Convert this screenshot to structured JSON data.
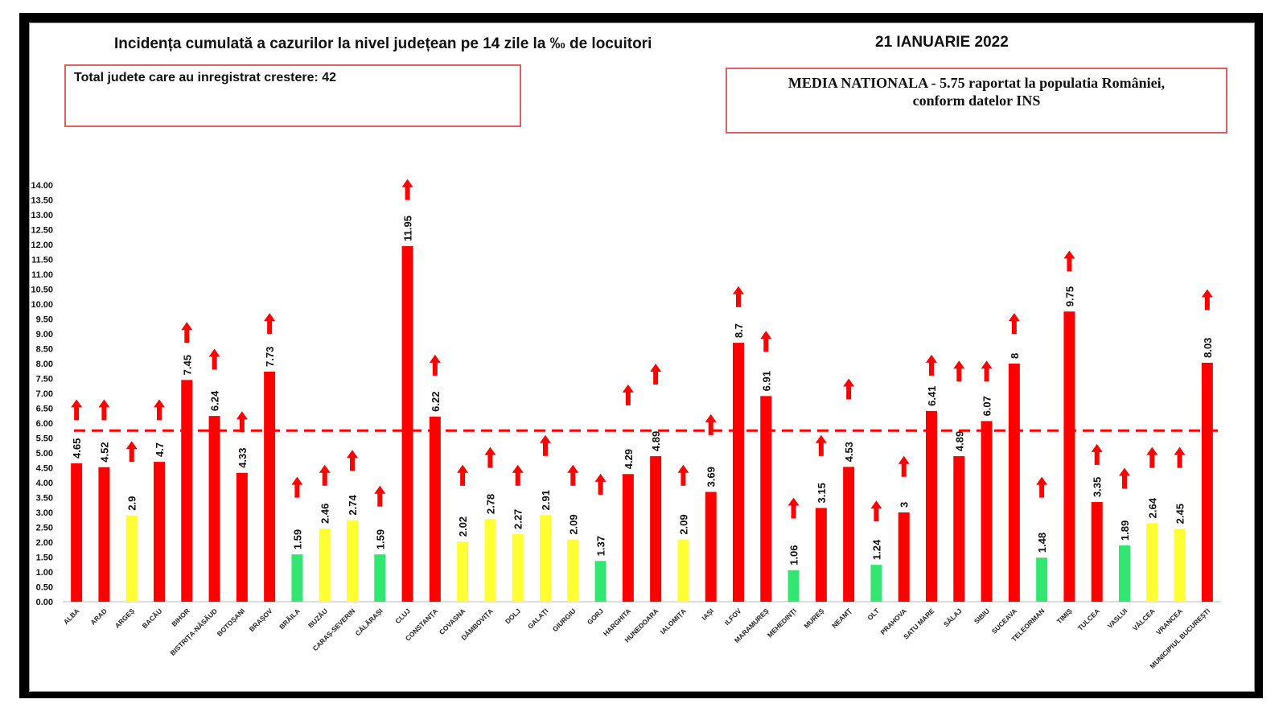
{
  "header": {
    "title": "Incidența cumulată a cazurilor la nivel județean pe 14 zile la ‰ de locuitori",
    "date": "21 IANUARIE 2022"
  },
  "summary": {
    "counties_increase": "Total judete care au inregistrat crestere: 42"
  },
  "national": {
    "line1": "MEDIA NATIONALA - 5.75  raportat la populatia României,",
    "line2": "conform datelor INS"
  },
  "colors": {
    "red": "#ff0000",
    "yellow": "#ffff33",
    "green": "#33e672",
    "arrow": "#ff0000",
    "average_line": "#ff0000"
  },
  "chart_data": {
    "type": "bar",
    "title": "Incidența cumulată a cazurilor la nivel județean pe 14 zile la ‰ de locuitori",
    "xlabel": "",
    "ylabel": "",
    "ylim": [
      0,
      14
    ],
    "yticks": [
      "0.00",
      "0.50",
      "1.00",
      "1.50",
      "2.00",
      "2.50",
      "3.00",
      "3.50",
      "4.00",
      "4.50",
      "5.00",
      "5.50",
      "6.00",
      "6.50",
      "7.00",
      "7.50",
      "8.00",
      "8.50",
      "9.00",
      "9.50",
      "10.00",
      "10.50",
      "11.00",
      "11.50",
      "12.00",
      "12.50",
      "13.00",
      "13.50",
      "14.00"
    ],
    "average": 5.75,
    "grid": false,
    "categories": [
      "ALBA",
      "ARAD",
      "ARGEȘ",
      "BACĂU",
      "BIHOR",
      "BISTRIȚA-NĂSĂUD",
      "BOTOȘANI",
      "BRAȘOV",
      "BRĂILA",
      "BUZĂU",
      "CARAȘ-SEVERIN",
      "CĂLĂRAȘI",
      "CLUJ",
      "CONSTANȚA",
      "COVASNA",
      "DÂMBOVIȚA",
      "DOLJ",
      "GALAȚI",
      "GIURGIU",
      "GORJ",
      "HARGHITA",
      "HUNEDOARA",
      "IALOMIȚA",
      "IAȘI",
      "ILFOV",
      "MARAMUREȘ",
      "MEHEDINȚI",
      "MUREȘ",
      "NEAMȚ",
      "OLT",
      "PRAHOVA",
      "SATU MARE",
      "SĂLAJ",
      "SIBIU",
      "SUCEAVA",
      "TELEORMAN",
      "TIMIȘ",
      "TULCEA",
      "VASLUI",
      "VÂLCEA",
      "VRANCEA",
      "MUNICIPIUL BUCUREȘTI"
    ],
    "values": [
      4.65,
      4.52,
      2.9,
      4.7,
      7.45,
      6.24,
      4.33,
      7.73,
      1.59,
      2.46,
      2.74,
      1.59,
      11.95,
      6.22,
      2.02,
      2.78,
      2.27,
      2.91,
      2.09,
      1.37,
      4.29,
      4.89,
      2.09,
      3.69,
      8.7,
      6.91,
      1.06,
      3.15,
      4.53,
      1.24,
      3,
      6.41,
      4.89,
      6.07,
      8,
      1.48,
      9.75,
      3.35,
      1.89,
      2.64,
      2.45,
      8.03
    ],
    "labels": [
      "4.65",
      "4.52",
      "2.9",
      "4.7",
      "7.45",
      "6.24",
      "4.33",
      "7.73",
      "1.59",
      "2.46",
      "2.74",
      "1.59",
      "11.95",
      "6.22",
      "2.02",
      "2.78",
      "2.27",
      "2.91",
      "2.09",
      "1.37",
      "4.29",
      "4.89",
      "2.09",
      "3.69",
      "8.7",
      "6.91",
      "1.06",
      "3.15",
      "4.53",
      "1.24",
      "3",
      "6.41",
      "4.89",
      "6.07",
      "8",
      "1.48",
      "9.75",
      "3.35",
      "1.89",
      "2.64",
      "2.45",
      "8.03"
    ],
    "color_class": [
      "red",
      "red",
      "yellow",
      "red",
      "red",
      "red",
      "red",
      "red",
      "green",
      "yellow",
      "yellow",
      "green",
      "red",
      "red",
      "yellow",
      "yellow",
      "yellow",
      "yellow",
      "yellow",
      "green",
      "red",
      "red",
      "yellow",
      "red",
      "red",
      "red",
      "green",
      "red",
      "red",
      "green",
      "red",
      "red",
      "red",
      "red",
      "red",
      "green",
      "red",
      "red",
      "green",
      "yellow",
      "yellow",
      "red"
    ],
    "trend": [
      "up",
      "up",
      "up",
      "up",
      "up",
      "up",
      "up",
      "up",
      "up",
      "up",
      "up",
      "up",
      "up",
      "up",
      "up",
      "up",
      "up",
      "up",
      "up",
      "up",
      "up",
      "up",
      "up",
      "up",
      "up",
      "up",
      "up",
      "up",
      "up",
      "up",
      "up",
      "up",
      "up",
      "up",
      "up",
      "up",
      "up",
      "up",
      "up",
      "up",
      "up",
      "up"
    ],
    "arrow_level": [
      6.8,
      6.8,
      5.4,
      6.8,
      9.4,
      8.5,
      6.4,
      9.7,
      4.2,
      4.6,
      5.1,
      3.9,
      14.2,
      8.3,
      4.6,
      5.2,
      4.6,
      5.6,
      4.6,
      4.3,
      7.3,
      8.0,
      4.6,
      6.3,
      10.6,
      9.1,
      3.5,
      5.6,
      7.5,
      3.4,
      4.9,
      8.3,
      8.1,
      8.1,
      9.7,
      4.2,
      11.8,
      5.3,
      4.5,
      5.2,
      5.2,
      10.5
    ]
  }
}
